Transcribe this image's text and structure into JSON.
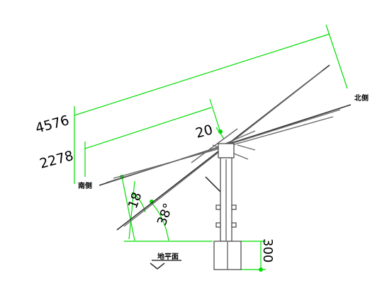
{
  "dimensions": {
    "overall_length": "4576",
    "half_length": "2278",
    "tilt_small": "20",
    "tilt_mid": "18",
    "tilt_large": "38°",
    "foundation_height": "300"
  },
  "labels": {
    "north": "北侧",
    "south": "南侧",
    "ground": "地平面"
  },
  "colors": {
    "dimension_line": "#00dd00",
    "structure": "#444444"
  }
}
